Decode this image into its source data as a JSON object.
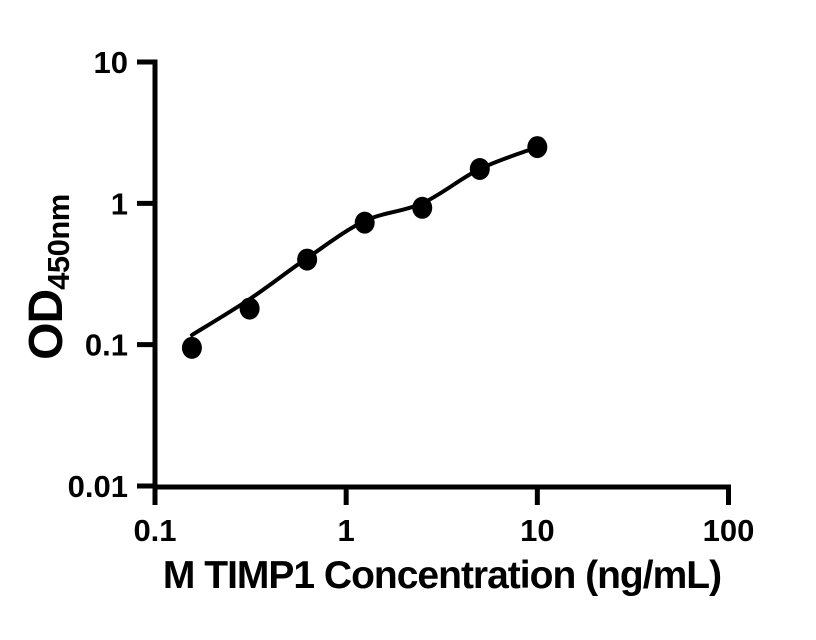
{
  "chart_data": {
    "type": "scatter",
    "title": "",
    "xlabel": "M TIMP1 Concentration (ng/mL)",
    "ylabel": "OD",
    "ylabel_subscript": "450nm",
    "x_scale": "log10",
    "y_scale": "log10",
    "xlim": [
      0.1,
      100
    ],
    "ylim": [
      0.01,
      10
    ],
    "x_tick_labels": [
      "0.1",
      "1",
      "10",
      "100"
    ],
    "y_tick_labels": [
      "0.01",
      "0.1",
      "1",
      "10"
    ],
    "grid": false,
    "legend": false,
    "marker_color": "#000000",
    "line_color": "#000000",
    "axis_color": "#000000",
    "background": "#ffffff",
    "series": [
      {
        "x": [
          0.156,
          0.3125,
          0.625,
          1.25,
          2.5,
          5,
          10
        ],
        "y": [
          0.095,
          0.18,
          0.4,
          0.73,
          0.93,
          1.75,
          2.5
        ]
      }
    ],
    "fit_curve": {
      "x": [
        0.156,
        0.3125,
        0.625,
        1.25,
        2.5,
        5,
        10
      ],
      "y": [
        0.117,
        0.21,
        0.41,
        0.75,
        1.0,
        1.75,
        2.5
      ]
    }
  }
}
